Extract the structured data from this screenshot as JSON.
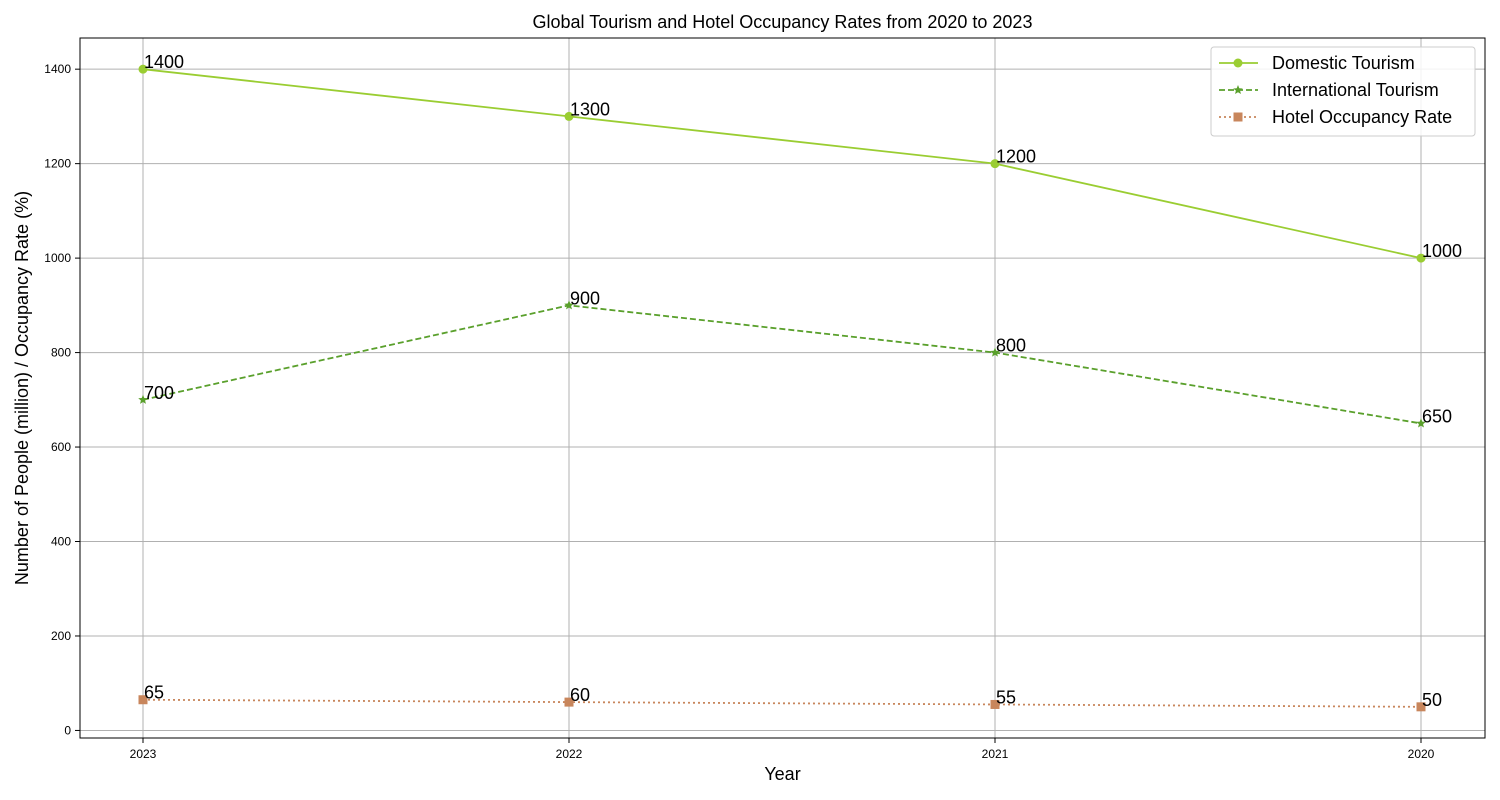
{
  "chart_data": {
    "type": "line",
    "title": "Global Tourism and Hotel Occupancy Rates from 2020 to 2023",
    "xlabel": "Year",
    "ylabel": "Number of People (million) / Occupancy Rate (%)",
    "categories": [
      "2023",
      "2022",
      "2021",
      "2020"
    ],
    "ylim": [
      -16,
      1466
    ],
    "yticks": [
      0,
      200,
      400,
      600,
      800,
      1000,
      1200,
      1400
    ],
    "grid": true,
    "legend_position": "top-right",
    "series": [
      {
        "name": "Domestic Tourism",
        "values": [
          1400,
          1300,
          1200,
          1000
        ],
        "color": "#9acd32",
        "line_style": "solid",
        "marker": "circle"
      },
      {
        "name": "International Tourism",
        "values": [
          700,
          900,
          800,
          650
        ],
        "color": "#5aa02c",
        "line_style": "dashed",
        "marker": "star"
      },
      {
        "name": "Hotel Occupancy Rate",
        "values": [
          65,
          60,
          55,
          50
        ],
        "color": "#c8865c",
        "line_style": "dotted",
        "marker": "square"
      }
    ]
  }
}
